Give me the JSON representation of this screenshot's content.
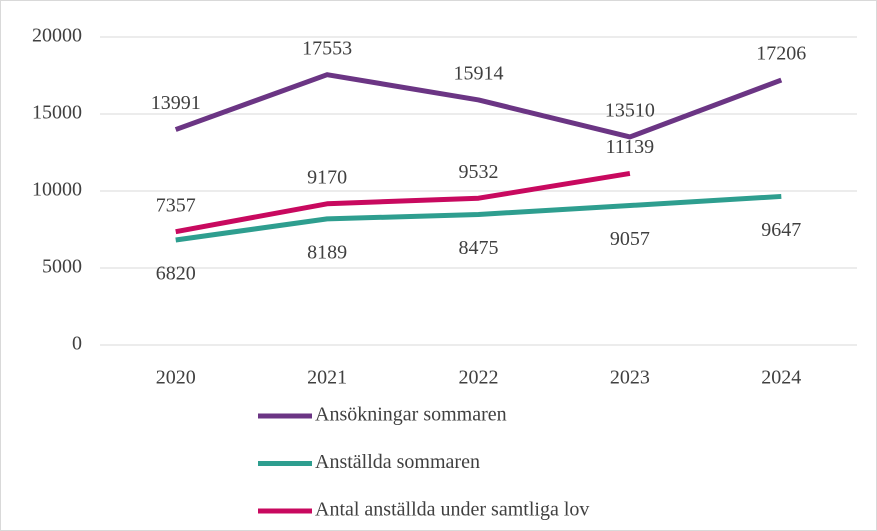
{
  "chart_data": {
    "type": "line",
    "categories": [
      "2020",
      "2021",
      "2022",
      "2023",
      "2024"
    ],
    "series": [
      {
        "name": "Ansökningar sommaren",
        "color": "#6b3584",
        "values": [
          13991,
          17553,
          15914,
          13510,
          17206
        ],
        "label_pos": "above"
      },
      {
        "name": "Anställda sommaren",
        "color": "#2e9e8f",
        "values": [
          6820,
          8189,
          8475,
          9057,
          9647
        ],
        "label_pos": "below"
      },
      {
        "name": "Antal anställda under samtliga lov",
        "color": "#c8095f",
        "values": [
          7357,
          9170,
          9532,
          11139,
          null
        ],
        "label_pos": "above"
      }
    ],
    "ylim": [
      0,
      20000
    ],
    "yticks": [
      0,
      5000,
      10000,
      15000,
      20000
    ],
    "grid": true,
    "legend": "bottom"
  }
}
